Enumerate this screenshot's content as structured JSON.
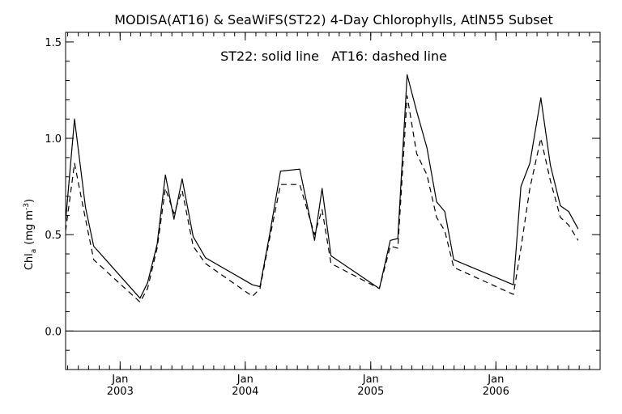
{
  "chart_data": {
    "type": "line",
    "title": "MODISA(AT16) & SeaWiFS(ST22) 4-Day Chlorophylls, AtlN55 Subset",
    "annotation": "ST22: solid line   AT16: dashed line",
    "ylabel": "Chl",
    "ylabel_sub": "a",
    "ylabel_units": "(mg m",
    "ylabel_sup": "-3",
    "ylabel_close": ")",
    "ylim": [
      -0.2,
      1.55
    ],
    "xlim": [
      "2002-07-26",
      "2006-11-01"
    ],
    "y_ticks": [
      "0.0",
      "0.5",
      "1.0",
      "1.5"
    ],
    "x_ticks": [
      {
        "date": "2003-01-01",
        "top": "Jan",
        "bottom": "2003"
      },
      {
        "date": "2004-01-01",
        "top": "Jan",
        "bottom": "2004"
      },
      {
        "date": "2005-01-01",
        "top": "Jan",
        "bottom": "2005"
      },
      {
        "date": "2006-01-01",
        "top": "Jan",
        "bottom": "2006"
      }
    ],
    "reference_line_y": 0.0,
    "series": [
      {
        "name": "ST22",
        "style": "solid",
        "color": "#000000",
        "points": [
          [
            "2002-07-26",
            0.57
          ],
          [
            "2002-08-21",
            1.1
          ],
          [
            "2002-09-22",
            0.64
          ],
          [
            "2002-10-16",
            0.44
          ],
          [
            "2003-02-28",
            0.17
          ],
          [
            "2003-03-22",
            0.25
          ],
          [
            "2003-04-19",
            0.45
          ],
          [
            "2003-05-13",
            0.81
          ],
          [
            "2003-06-07",
            0.58
          ],
          [
            "2003-07-01",
            0.79
          ],
          [
            "2003-08-02",
            0.49
          ],
          [
            "2003-09-07",
            0.38
          ],
          [
            "2004-01-22",
            0.24
          ],
          [
            "2004-02-13",
            0.23
          ],
          [
            "2004-03-12",
            0.5
          ],
          [
            "2004-04-13",
            0.83
          ],
          [
            "2004-06-08",
            0.84
          ],
          [
            "2004-07-21",
            0.47
          ],
          [
            "2004-08-12",
            0.74
          ],
          [
            "2004-09-07",
            0.39
          ],
          [
            "2005-01-26",
            0.22
          ],
          [
            "2005-02-27",
            0.47
          ],
          [
            "2005-03-21",
            0.48
          ],
          [
            "2005-04-17",
            1.33
          ],
          [
            "2005-05-15",
            1.14
          ],
          [
            "2005-06-14",
            0.95
          ],
          [
            "2005-07-12",
            0.67
          ],
          [
            "2005-08-05",
            0.62
          ],
          [
            "2005-08-31",
            0.37
          ],
          [
            "2006-02-21",
            0.24
          ],
          [
            "2006-03-15",
            0.75
          ],
          [
            "2006-04-10",
            0.87
          ],
          [
            "2006-05-12",
            1.21
          ],
          [
            "2006-06-09",
            0.86
          ],
          [
            "2006-07-08",
            0.65
          ],
          [
            "2006-08-01",
            0.62
          ],
          [
            "2006-08-29",
            0.53
          ]
        ]
      },
      {
        "name": "AT16",
        "style": "dashed",
        "color": "#000000",
        "points": [
          [
            "2002-07-26",
            0.52
          ],
          [
            "2002-08-21",
            0.87
          ],
          [
            "2002-09-22",
            0.58
          ],
          [
            "2002-10-16",
            0.37
          ],
          [
            "2003-02-28",
            0.15
          ],
          [
            "2003-03-22",
            0.22
          ],
          [
            "2003-04-19",
            0.43
          ],
          [
            "2003-05-13",
            0.74
          ],
          [
            "2003-06-07",
            0.61
          ],
          [
            "2003-07-01",
            0.73
          ],
          [
            "2003-08-02",
            0.44
          ],
          [
            "2003-09-07",
            0.35
          ],
          [
            "2004-01-22",
            0.18
          ],
          [
            "2004-02-13",
            0.22
          ],
          [
            "2004-03-12",
            0.48
          ],
          [
            "2004-04-13",
            0.76
          ],
          [
            "2004-06-08",
            0.76
          ],
          [
            "2004-07-21",
            0.5
          ],
          [
            "2004-08-12",
            0.63
          ],
          [
            "2004-09-07",
            0.35
          ],
          [
            "2005-01-26",
            0.22
          ],
          [
            "2005-02-27",
            0.44
          ],
          [
            "2005-03-21",
            0.43
          ],
          [
            "2005-04-17",
            1.22
          ],
          [
            "2005-05-15",
            0.92
          ],
          [
            "2005-06-14",
            0.81
          ],
          [
            "2005-07-12",
            0.59
          ],
          [
            "2005-08-05",
            0.52
          ],
          [
            "2005-08-31",
            0.33
          ],
          [
            "2006-02-21",
            0.19
          ],
          [
            "2006-03-15",
            0.43
          ],
          [
            "2006-04-10",
            0.74
          ],
          [
            "2006-05-12",
            1.0
          ],
          [
            "2006-06-09",
            0.78
          ],
          [
            "2006-07-08",
            0.59
          ],
          [
            "2006-08-01",
            0.55
          ],
          [
            "2006-08-29",
            0.47
          ]
        ]
      }
    ]
  }
}
